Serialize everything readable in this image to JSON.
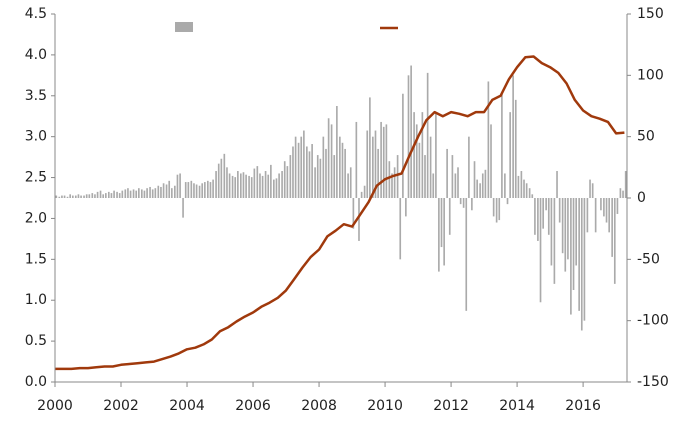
{
  "chart_data": {
    "type": "bar_line",
    "xlim": [
      2000,
      2017.33
    ],
    "xticks": [
      2000,
      2002,
      2004,
      2006,
      2008,
      2010,
      2012,
      2014,
      2016
    ],
    "ylim": [
      0,
      4.5
    ],
    "yticks": [
      {
        "value": 0,
        "label": "0.0"
      },
      {
        "value": 0.5,
        "label": "0.5"
      },
      {
        "value": 1,
        "label": "1.0"
      },
      {
        "value": 1.5,
        "label": "1.5"
      },
      {
        "value": 2,
        "label": "2.0"
      },
      {
        "value": 2.5,
        "label": "2.5"
      },
      {
        "value": 3,
        "label": "3.0"
      },
      {
        "value": 3.5,
        "label": "3.5"
      },
      {
        "value": 4,
        "label": "4.0"
      },
      {
        "value": 4.5,
        "label": "4.5"
      }
    ],
    "y2lim": [
      -150,
      150
    ],
    "y2ticks": [
      150,
      100,
      50,
      0,
      -50,
      -100,
      -150
    ],
    "legend": "top",
    "series": [
      {
        "type": "bar",
        "axis": "y2",
        "color": "#aaaaaa",
        "x": [
          2000.04,
          2000.13,
          2000.21,
          2000.29,
          2000.38,
          2000.46,
          2000.54,
          2000.63,
          2000.71,
          2000.79,
          2000.88,
          2000.96,
          2001.04,
          2001.13,
          2001.21,
          2001.29,
          2001.38,
          2001.46,
          2001.54,
          2001.63,
          2001.71,
          2001.79,
          2001.88,
          2001.96,
          2002.04,
          2002.13,
          2002.21,
          2002.29,
          2002.38,
          2002.46,
          2002.54,
          2002.63,
          2002.71,
          2002.79,
          2002.88,
          2002.96,
          2003.04,
          2003.13,
          2003.21,
          2003.29,
          2003.38,
          2003.46,
          2003.54,
          2003.63,
          2003.71,
          2003.79,
          2003.88,
          2003.96,
          2004.04,
          2004.13,
          2004.21,
          2004.29,
          2004.38,
          2004.46,
          2004.54,
          2004.63,
          2004.71,
          2004.79,
          2004.88,
          2004.96,
          2005.04,
          2005.13,
          2005.21,
          2005.29,
          2005.38,
          2005.46,
          2005.54,
          2005.63,
          2005.71,
          2005.79,
          2005.88,
          2005.96,
          2006.04,
          2006.13,
          2006.21,
          2006.29,
          2006.38,
          2006.46,
          2006.54,
          2006.63,
          2006.71,
          2006.79,
          2006.88,
          2006.96,
          2007.04,
          2007.13,
          2007.21,
          2007.29,
          2007.38,
          2007.46,
          2007.54,
          2007.63,
          2007.71,
          2007.79,
          2007.88,
          2007.96,
          2008.04,
          2008.13,
          2008.21,
          2008.29,
          2008.38,
          2008.46,
          2008.54,
          2008.63,
          2008.71,
          2008.79,
          2008.88,
          2008.96,
          2009.04,
          2009.13,
          2009.21,
          2009.29,
          2009.38,
          2009.46,
          2009.54,
          2009.63,
          2009.71,
          2009.79,
          2009.88,
          2009.96,
          2010.04,
          2010.13,
          2010.21,
          2010.29,
          2010.38,
          2010.46,
          2010.54,
          2010.63,
          2010.71,
          2010.79,
          2010.88,
          2010.96,
          2011.04,
          2011.13,
          2011.21,
          2011.29,
          2011.38,
          2011.46,
          2011.54,
          2011.63,
          2011.71,
          2011.79,
          2011.88,
          2011.96,
          2012.04,
          2012.13,
          2012.21,
          2012.29,
          2012.38,
          2012.46,
          2012.54,
          2012.63,
          2012.71,
          2012.79,
          2012.88,
          2012.96,
          2013.04,
          2013.13,
          2013.21,
          2013.29,
          2013.38,
          2013.46,
          2013.54,
          2013.63,
          2013.71,
          2013.79,
          2013.88,
          2013.96,
          2014.04,
          2014.13,
          2014.21,
          2014.29,
          2014.38,
          2014.46,
          2014.54,
          2014.63,
          2014.71,
          2014.79,
          2014.88,
          2014.96,
          2015.04,
          2015.13,
          2015.21,
          2015.29,
          2015.38,
          2015.46,
          2015.54,
          2015.63,
          2015.71,
          2015.79,
          2015.88,
          2015.96,
          2016.04,
          2016.13,
          2016.21,
          2016.29,
          2016.38,
          2016.46,
          2016.54,
          2016.63,
          2016.71,
          2016.79,
          2016.88,
          2016.96,
          2017.04,
          2017.13,
          2017.21,
          2017.29
        ],
        "values": [
          2,
          1,
          2,
          2,
          1,
          3,
          2,
          2,
          3,
          2,
          2,
          3,
          3,
          4,
          3,
          5,
          6,
          3,
          4,
          5,
          4,
          6,
          5,
          4,
          6,
          7,
          8,
          6,
          7,
          6,
          8,
          7,
          6,
          8,
          9,
          7,
          8,
          10,
          9,
          12,
          11,
          14,
          8,
          10,
          19,
          20,
          -16,
          13,
          13,
          14,
          12,
          11,
          10,
          12,
          13,
          14,
          13,
          15,
          22,
          28,
          32,
          36,
          25,
          20,
          18,
          17,
          22,
          20,
          21,
          19,
          18,
          17,
          24,
          26,
          20,
          18,
          22,
          19,
          27,
          15,
          16,
          20,
          22,
          30,
          26,
          35,
          42,
          50,
          45,
          50,
          55,
          42,
          38,
          44,
          25,
          35,
          32,
          50,
          40,
          65,
          60,
          35,
          75,
          50,
          45,
          40,
          20,
          25,
          -25,
          62,
          -35,
          5,
          10,
          55,
          82,
          50,
          55,
          40,
          62,
          58,
          60,
          30,
          20,
          25,
          35,
          -50,
          85,
          -15,
          100,
          108,
          70,
          60,
          45,
          70,
          35,
          102,
          50,
          20,
          70,
          -60,
          -40,
          -55,
          40,
          -30,
          35,
          20,
          25,
          -5,
          -8,
          -92,
          50,
          -10,
          30,
          15,
          12,
          20,
          23,
          95,
          60,
          -15,
          -20,
          -18,
          85,
          20,
          -5,
          70,
          100,
          80,
          18,
          22,
          15,
          12,
          8,
          3,
          -30,
          -35,
          -85,
          -25,
          -10,
          -30,
          -55,
          -70,
          22,
          -20,
          -45,
          -60,
          -50,
          -95,
          -75,
          -55,
          -92,
          -108,
          -100,
          -28,
          15,
          12,
          -28,
          0,
          -10,
          -15,
          -20,
          -28,
          -48,
          -70,
          -13,
          8,
          6,
          22
        ]
      },
      {
        "type": "line",
        "color": "#a0390c",
        "x": [
          2000,
          2000.25,
          2000.5,
          2000.75,
          2001,
          2001.25,
          2001.5,
          2001.75,
          2002,
          2002.25,
          2002.5,
          2002.75,
          2003,
          2003.25,
          2003.5,
          2003.75,
          2004,
          2004.25,
          2004.5,
          2004.75,
          2005,
          2005.25,
          2005.5,
          2005.75,
          2006,
          2006.25,
          2006.5,
          2006.75,
          2007,
          2007.25,
          2007.5,
          2007.75,
          2008,
          2008.25,
          2008.5,
          2008.75,
          2009,
          2009.25,
          2009.5,
          2009.75,
          2010,
          2010.25,
          2010.5,
          2010.75,
          2011,
          2011.25,
          2011.5,
          2011.75,
          2012,
          2012.25,
          2012.5,
          2012.75,
          2013,
          2013.25,
          2013.5,
          2013.75,
          2014,
          2014.25,
          2014.5,
          2014.75,
          2015,
          2015.25,
          2015.5,
          2015.75,
          2016,
          2016.25,
          2016.5,
          2016.75,
          2017,
          2017.25
        ],
        "values": [
          0.16,
          0.16,
          0.16,
          0.17,
          0.17,
          0.18,
          0.19,
          0.19,
          0.21,
          0.22,
          0.23,
          0.24,
          0.25,
          0.28,
          0.31,
          0.35,
          0.4,
          0.42,
          0.46,
          0.52,
          0.62,
          0.67,
          0.74,
          0.8,
          0.85,
          0.92,
          0.97,
          1.03,
          1.12,
          1.26,
          1.4,
          1.53,
          1.62,
          1.78,
          1.85,
          1.93,
          1.9,
          2.05,
          2.2,
          2.4,
          2.48,
          2.52,
          2.55,
          2.78,
          3.0,
          3.2,
          3.3,
          3.25,
          3.3,
          3.28,
          3.25,
          3.3,
          3.3,
          3.45,
          3.5,
          3.7,
          3.85,
          3.97,
          3.98,
          3.9,
          3.85,
          3.78,
          3.65,
          3.45,
          3.32,
          3.25,
          3.22,
          3.18,
          3.04,
          3.05
        ]
      }
    ]
  }
}
